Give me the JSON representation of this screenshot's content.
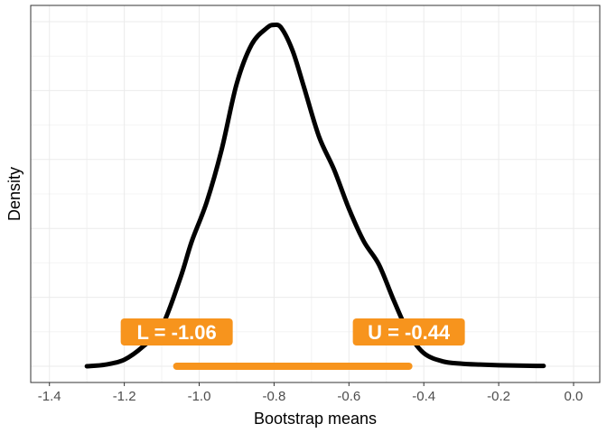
{
  "chart_data": {
    "type": "line",
    "title": "",
    "xlabel": "Bootstrap means",
    "ylabel": "Density",
    "xlim": [
      -1.45,
      0.07
    ],
    "ylim": [
      0,
      1.05
    ],
    "grid": true,
    "y_tick_labels": false,
    "x_ticks": [
      -1.4,
      -1.2,
      -1.0,
      -0.8,
      -0.6,
      -0.4,
      -0.2,
      0.0
    ],
    "x_tick_labels": [
      "-1.4",
      "-1.2",
      "-1.0",
      "-0.8",
      "-0.6",
      "-0.4",
      "-0.2",
      "0.0"
    ],
    "series": [
      {
        "color": "#000000",
        "x": [
          -1.3,
          -1.25,
          -1.2,
          -1.15,
          -1.1,
          -1.05,
          -1.02,
          -0.98,
          -0.94,
          -0.9,
          -0.86,
          -0.82,
          -0.8,
          -0.78,
          -0.75,
          -0.72,
          -0.68,
          -0.64,
          -0.6,
          -0.56,
          -0.52,
          -0.48,
          -0.44,
          -0.4,
          -0.35,
          -0.3,
          -0.25,
          -0.2,
          -0.15,
          -0.1,
          -0.08
        ],
        "y": [
          0.0,
          0.005,
          0.02,
          0.06,
          0.12,
          0.27,
          0.38,
          0.5,
          0.66,
          0.86,
          0.98,
          1.03,
          1.04,
          1.03,
          0.96,
          0.85,
          0.7,
          0.6,
          0.48,
          0.38,
          0.31,
          0.2,
          0.1,
          0.04,
          0.015,
          0.008,
          0.005,
          0.003,
          0.002,
          0.001,
          0.001
        ]
      }
    ],
    "interval": {
      "lower": -1.06,
      "upper": -0.44,
      "color": "#F7941D"
    },
    "annotations": [
      {
        "text": "L =  -1.06",
        "x": -1.06
      },
      {
        "text": "U =  -0.44",
        "x": -0.44
      }
    ]
  }
}
